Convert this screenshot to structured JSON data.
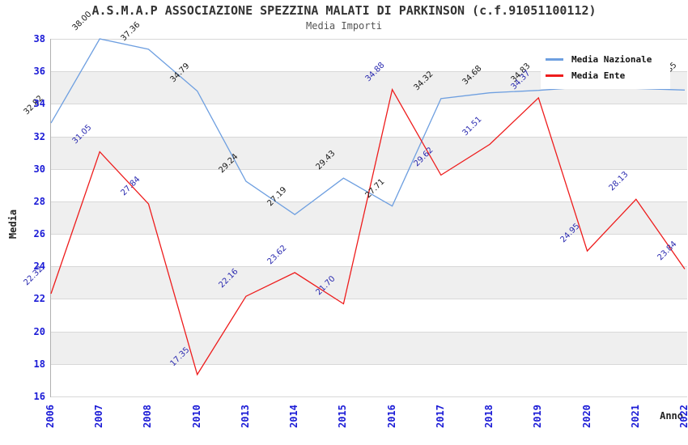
{
  "chart_data": {
    "type": "line",
    "title": "A.S.M.A.P ASSOCIAZIONE SPEZZINA MALATI DI PARKINSON (c.f.91051100112)",
    "subtitle": "Media Importi",
    "xlabel": "Anno",
    "ylabel": "Media",
    "categories": [
      "2006",
      "2007",
      "2008",
      "2010",
      "2013",
      "2014",
      "2015",
      "2016",
      "2017",
      "2018",
      "2019",
      "2020",
      "2021",
      "2022"
    ],
    "series": [
      {
        "name": "Media Nazionale",
        "color": "#6e9fe0",
        "label_color": "#1a1a1a",
        "values": [
          32.82,
          38.0,
          37.36,
          34.79,
          29.24,
          27.19,
          29.43,
          27.71,
          34.32,
          34.68,
          34.83,
          35.05,
          34.95,
          34.85
        ],
        "labels": [
          "32.82",
          "38.00",
          "37.36",
          "34.79",
          "29.24",
          "27.19",
          "29.43",
          "27.71",
          "34.32",
          "34.68",
          "34.83",
          "",
          "",
          "34.85"
        ]
      },
      {
        "name": "Media Ente",
        "color": "#ee1c1c",
        "label_color": "#2b2bb0",
        "values": [
          22.32,
          31.05,
          27.84,
          17.35,
          22.16,
          23.62,
          21.7,
          34.88,
          29.62,
          31.51,
          34.37,
          24.95,
          28.13,
          23.84
        ],
        "labels": [
          "22.32",
          "31.05",
          "27.84",
          "17.35",
          "22.16",
          "23.62",
          "21.70",
          "34.88",
          "29.62",
          "31.51",
          "34.37",
          "24.95",
          "28.13",
          "23.84"
        ]
      }
    ],
    "ylim": [
      16,
      38
    ],
    "yticks": [
      16,
      18,
      20,
      22,
      24,
      26,
      28,
      30,
      32,
      34,
      36,
      38
    ],
    "grid": true,
    "band_color": "#efefef",
    "grid_color": "#d8d8d8",
    "tick_label_color": "#1a1ad6",
    "legend_position": "top-right"
  }
}
